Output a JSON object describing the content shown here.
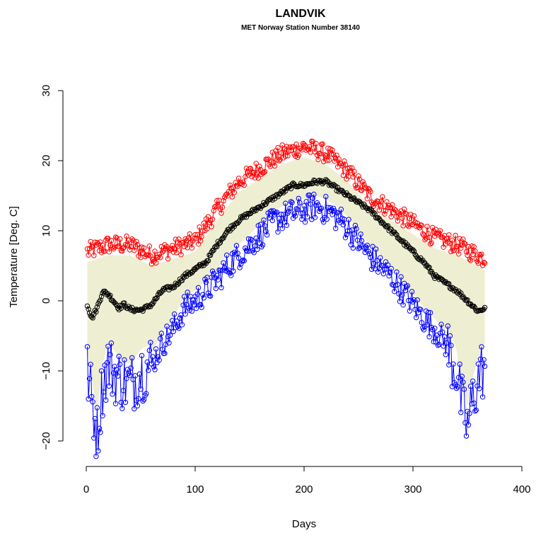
{
  "chart_data": {
    "type": "scatter",
    "title": "LANDVIK",
    "subtitle": "MET Norway Station Number 38140",
    "xlabel": "Days",
    "ylabel": "Temperature [Deg. C]",
    "xlim": [
      0,
      400
    ],
    "ylim": [
      -20,
      30
    ],
    "xticks": [
      0,
      100,
      200,
      300,
      400
    ],
    "yticks": [
      -20,
      -10,
      0,
      10,
      20,
      30
    ],
    "grid": false,
    "legend": "none",
    "colors": {
      "max": "#ff0000",
      "mean": "#000000",
      "min": "#0000ff",
      "band": "#eeeed2"
    },
    "series": [
      {
        "key": "max",
        "x": [
          1,
          20,
          40,
          60,
          80,
          100,
          120,
          140,
          160,
          180,
          200,
          220,
          240,
          260,
          280,
          300,
          320,
          340,
          366
        ],
        "values": [
          7,
          8,
          8,
          6.5,
          7.5,
          8.5,
          13,
          17,
          19,
          21,
          22,
          21,
          18.5,
          15,
          13,
          11,
          9,
          8,
          6
        ]
      },
      {
        "key": "mean",
        "x": [
          1,
          5,
          10,
          15,
          20,
          25,
          30,
          35,
          40,
          45,
          50,
          55,
          60,
          65,
          70,
          80,
          90,
          100,
          110,
          120,
          130,
          140,
          150,
          160,
          170,
          180,
          190,
          200,
          210,
          220,
          230,
          240,
          250,
          260,
          270,
          280,
          290,
          300,
          310,
          320,
          330,
          340,
          350,
          360,
          366
        ],
        "values": [
          -0.5,
          -2.5,
          -1,
          1.3,
          1,
          0,
          -1,
          -0.5,
          -1.2,
          -1.3,
          -1.3,
          -1,
          -0.5,
          0.5,
          1.5,
          2,
          3.5,
          4.5,
          5.5,
          8,
          10,
          11.5,
          12.5,
          13.5,
          14.5,
          15.5,
          16.5,
          16.5,
          17,
          17,
          16,
          15,
          14,
          13,
          11.5,
          10,
          8.5,
          7,
          5.5,
          3.5,
          2.5,
          1.5,
          0,
          -1.5,
          -1
        ]
      },
      {
        "key": "min",
        "x": [
          1,
          5,
          10,
          15,
          20,
          30,
          40,
          50,
          60,
          70,
          80,
          90,
          100,
          110,
          120,
          130,
          140,
          150,
          160,
          170,
          180,
          190,
          200,
          210,
          220,
          230,
          240,
          250,
          260,
          270,
          280,
          290,
          300,
          310,
          320,
          330,
          340,
          345,
          350,
          355,
          360,
          366
        ],
        "values": [
          -10,
          -14,
          -19,
          -12,
          -9,
          -11,
          -12,
          -10,
          -9,
          -6,
          -4,
          -1,
          0,
          1.5,
          3,
          5,
          6.5,
          8,
          9.5,
          11,
          12,
          12.5,
          13,
          13.5,
          13,
          12,
          10.5,
          8.5,
          6.5,
          5,
          3.5,
          1.5,
          -0.5,
          -2.5,
          -4,
          -6,
          -10,
          -15,
          -18,
          -14,
          -11,
          -9
        ]
      }
    ]
  }
}
